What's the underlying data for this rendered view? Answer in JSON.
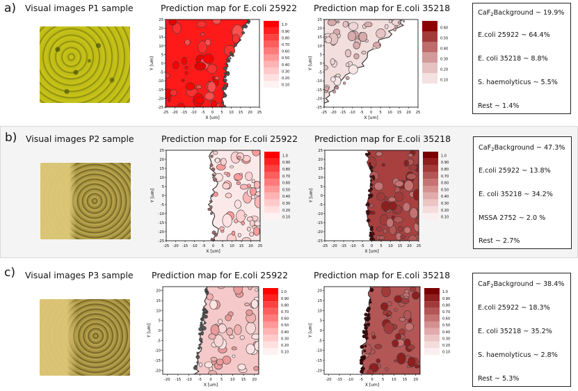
{
  "rows": [
    {
      "label": "a)",
      "sample_title": "Visual images P1 sample",
      "map_titles": [
        "Prediction map for E.coli 25922",
        "Prediction map for E.coli 35218"
      ],
      "stats": [
        {
          "pre": "CaF",
          "sub": "2",
          "post": "Background ~ 19.9%"
        },
        {
          "pre": "E.coli 25922 ~ 64.4%",
          "sub": "",
          "post": ""
        },
        {
          "pre": "E. coli 35218 ~ 8.8%",
          "sub": "",
          "post": ""
        },
        {
          "pre": "S. haemolyticus ~ 5.5%",
          "sub": "",
          "post": ""
        },
        {
          "pre": "Rest ~ 1.4%",
          "sub": "",
          "post": ""
        }
      ]
    },
    {
      "label": "b)",
      "sample_title": "Visual images P2 sample",
      "map_titles": [
        "Prediction map for E.coli 25922",
        "Prediction map for E.coli 35218"
      ],
      "stats": [
        {
          "pre": "CaF",
          "sub": "2",
          "post": "Background ~ 47.3%"
        },
        {
          "pre": "E.coli 25922 ~ 13.8%",
          "sub": "",
          "post": ""
        },
        {
          "pre": "E. coli 35218 ~ 34.2%",
          "sub": "",
          "post": ""
        },
        {
          "pre": "MSSA 2752 ~ 2.0 %",
          "sub": "",
          "post": ""
        },
        {
          "pre": "Rest ~ 2.7%",
          "sub": "",
          "post": ""
        }
      ]
    },
    {
      "label": "c)",
      "sample_title": "Visual images P3 sample",
      "map_titles": [
        "Prediction map for E.coli 25922",
        "Prediction map for E.coli 35218"
      ],
      "stats": [
        {
          "pre": "CaF",
          "sub": "2",
          "post": "Background ~ 38.4%"
        },
        {
          "pre": "E.coli 25922 ~ 18.3%",
          "sub": "",
          "post": ""
        },
        {
          "pre": "E. coli 35218 ~ 35.2%",
          "sub": "",
          "post": ""
        },
        {
          "pre": "S. haemolyticus ~ 2.8%",
          "sub": "",
          "post": ""
        },
        {
          "pre": "Rest ~ 5.3%",
          "sub": "",
          "post": ""
        }
      ]
    }
  ],
  "axes": {
    "xlabel": "X [um]",
    "ylabel": "Y [um]",
    "ticks_ab": [
      "-25",
      "-20",
      "-15",
      "-10",
      "-5",
      "0",
      "5",
      "10",
      "15",
      "20",
      "25"
    ],
    "ticks_c": [
      "-20",
      "-15",
      "-10",
      "-5",
      "0",
      "5",
      "10",
      "15",
      "20"
    ]
  },
  "colorbars": {
    "red_ticks": [
      "1.0",
      "0.90",
      "0.80",
      "0.70",
      "0.60",
      "0.50",
      "0.40",
      "0.30",
      "0.20",
      "0.10"
    ],
    "red_colors": [
      "#ff0000",
      "#ff2020",
      "#ff4040",
      "#ff5e5e",
      "#ff7b7b",
      "#ff9898",
      "#ffb3b3",
      "#ffcaca",
      "#ffe0e0",
      "#fff2f2"
    ],
    "maroon_ticks_a": [
      "0.60",
      "0.50",
      "0.40",
      "0.30",
      "0.20",
      "0.10"
    ],
    "maroon_colors_a": [
      "#8b0000",
      "#a33a3a",
      "#bd6b6b",
      "#d39a9a",
      "#e6c2c2",
      "#f4e1e1"
    ],
    "maroon_ticks": [
      "1.0",
      "0.90",
      "0.80",
      "0.70",
      "0.60",
      "0.50",
      "0.40",
      "0.30",
      "0.20",
      "0.10"
    ],
    "maroon_colors": [
      "#7a0000",
      "#8f1f1f",
      "#a23a3a",
      "#b35656",
      "#c47272",
      "#d48f8f",
      "#e1abab",
      "#ecc5c5",
      "#f5dcdc",
      "#fbeeee"
    ]
  },
  "chart_data": [
    {
      "type": "heatmap",
      "panel": "a",
      "title": "Prediction map for E.coli 25922",
      "xlabel": "X [um]",
      "ylabel": "Y [um]",
      "xlim": [
        -25,
        25
      ],
      "ylim": [
        -25,
        25
      ],
      "colorbar_ticks": [
        1.0,
        0.9,
        0.8,
        0.7,
        0.6,
        0.5,
        0.4,
        0.3,
        0.2,
        0.1
      ],
      "fill": "high probability over most of the map; boundary near x from 0 to 20"
    },
    {
      "type": "heatmap",
      "panel": "a",
      "title": "Prediction map for E.coli 35218",
      "xlabel": "X [um]",
      "ylabel": "Y [um]",
      "xlim": [
        -25,
        25
      ],
      "ylim": [
        -25,
        25
      ],
      "colorbar_ticks": [
        0.6,
        0.5,
        0.4,
        0.3,
        0.2,
        0.1
      ],
      "fill": "low probability over the upper-left region"
    },
    {
      "type": "heatmap",
      "panel": "b",
      "title": "Prediction map for E.coli 25922",
      "xlabel": "X [um]",
      "ylabel": "Y [um]",
      "xlim": [
        -25,
        25
      ],
      "ylim": [
        -25,
        25
      ],
      "colorbar_ticks": [
        1.0,
        0.9,
        0.8,
        0.7,
        0.6,
        0.5,
        0.4,
        0.3,
        0.2,
        0.1
      ],
      "fill": "patchy low probability for x > 0"
    },
    {
      "type": "heatmap",
      "panel": "b",
      "title": "Prediction map for E.coli 35218",
      "xlabel": "X [um]",
      "ylabel": "Y [um]",
      "xlim": [
        -25,
        25
      ],
      "ylim": [
        -25,
        25
      ],
      "colorbar_ticks": [
        1.0,
        0.9,
        0.8,
        0.7,
        0.6,
        0.5,
        0.4,
        0.3,
        0.2,
        0.1
      ],
      "fill": "high probability for x > 0"
    },
    {
      "type": "heatmap",
      "panel": "c",
      "title": "Prediction map for E.coli 25922",
      "xlabel": "X [um]",
      "ylabel": "Y [um]",
      "xlim": [
        -22,
        22
      ],
      "ylim": [
        -22,
        22
      ],
      "colorbar_ticks": [
        1.0,
        0.9,
        0.8,
        0.7,
        0.6,
        0.5,
        0.4,
        0.3,
        0.2,
        0.1
      ],
      "fill": "moderate probability for x > -5"
    },
    {
      "type": "heatmap",
      "panel": "c",
      "title": "Prediction map for E.coli 35218",
      "xlabel": "X [um]",
      "ylabel": "Y [um]",
      "xlim": [
        -22,
        22
      ],
      "ylim": [
        -22,
        22
      ],
      "colorbar_ticks": [
        1.0,
        0.9,
        0.8,
        0.7,
        0.6,
        0.5,
        0.4,
        0.3,
        0.2,
        0.1
      ],
      "fill": "high probability for x > -5"
    }
  ]
}
